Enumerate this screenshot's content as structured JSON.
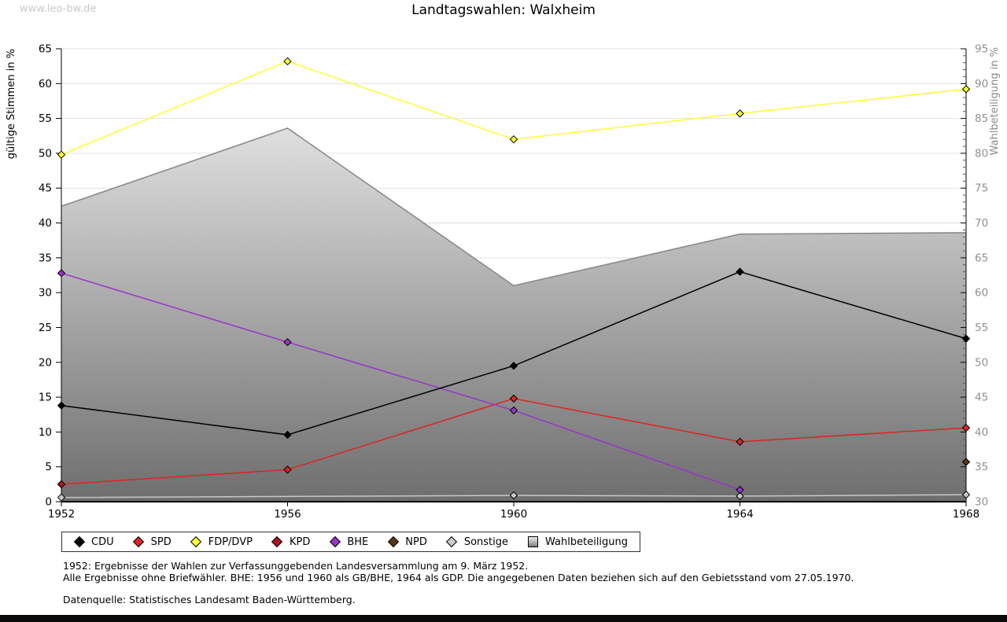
{
  "watermark": "www.leo-bw.de",
  "title": "Landtagswahlen: Walxheim",
  "chart_data": {
    "type": "line",
    "title": "Landtagswahlen: Walxheim",
    "x": [
      1952,
      1956,
      1960,
      1964,
      1968
    ],
    "left_axis": {
      "label": "gültige Stimmen in %",
      "min": 0,
      "max": 65,
      "tick_step": 5
    },
    "right_axis": {
      "label": "Wahlbeteiligung in %",
      "min": 30,
      "max": 95,
      "tick_step": 5,
      "minor_tick_step": 1
    },
    "grid": true,
    "legend_position": "bottom",
    "series": [
      {
        "name": "CDU",
        "type": "line",
        "axis": "left",
        "color": "#000000",
        "values": [
          13.8,
          9.6,
          19.5,
          33.0,
          23.4
        ]
      },
      {
        "name": "SPD",
        "type": "line",
        "axis": "left",
        "color": "#e02222",
        "values": [
          2.5,
          4.6,
          14.8,
          8.6,
          10.6
        ]
      },
      {
        "name": "FDP/DVP",
        "type": "line",
        "axis": "left",
        "color": "#ffff33",
        "values": [
          49.8,
          63.2,
          52.0,
          55.7,
          59.2
        ]
      },
      {
        "name": "KPD",
        "type": "line",
        "axis": "left",
        "color": "#b01222",
        "values": [
          2.5,
          null,
          null,
          null,
          null
        ]
      },
      {
        "name": "BHE",
        "type": "line",
        "axis": "left",
        "color": "#9933cc",
        "values": [
          32.8,
          22.9,
          13.1,
          1.7,
          null
        ]
      },
      {
        "name": "NPD",
        "type": "line",
        "axis": "left",
        "color": "#5e3514",
        "values": [
          null,
          null,
          null,
          null,
          5.7
        ]
      },
      {
        "name": "Sonstige",
        "type": "line",
        "axis": "left",
        "color": "#c8c8c8",
        "values": [
          0.6,
          null,
          0.9,
          0.8,
          1.0
        ]
      },
      {
        "name": "Wahlbeteiligung",
        "type": "area",
        "axis": "right",
        "color_top": "#f7f7f7",
        "color_bottom": "#6e6e6e",
        "edge_color": "#8a8a8a",
        "values": [
          72.4,
          83.6,
          61.0,
          68.4,
          68.6
        ]
      }
    ]
  },
  "legend": {
    "items": [
      {
        "label": "CDU",
        "marker": "diamond",
        "color": "#000000"
      },
      {
        "label": "SPD",
        "marker": "diamond",
        "color": "#e02222"
      },
      {
        "label": "FDP/DVP",
        "marker": "diamond",
        "color": "#ffff33"
      },
      {
        "label": "KPD",
        "marker": "diamond",
        "color": "#b01222"
      },
      {
        "label": "BHE",
        "marker": "diamond",
        "color": "#9933cc"
      },
      {
        "label": "NPD",
        "marker": "diamond",
        "color": "#5e3514"
      },
      {
        "label": "Sonstige",
        "marker": "diamond",
        "color": "#cccccc"
      },
      {
        "label": "Wahlbeteiligung",
        "marker": "square-gradient",
        "color": "#aaaaaa"
      }
    ]
  },
  "footnotes": {
    "lines": [
      "1952: Ergebnisse der Wahlen zur Verfassunggebenden Landesversammlung am 9. März 1952.",
      "Alle Ergebnisse ohne Briefwähler. BHE: 1956 und 1960 als GB/BHE, 1964 als GDP. Die angegebenen Daten beziehen sich auf den Gebietsstand vom 27.05.1970.",
      "",
      "Datenquelle: Statistisches Landesamt Baden-Württemberg."
    ]
  }
}
